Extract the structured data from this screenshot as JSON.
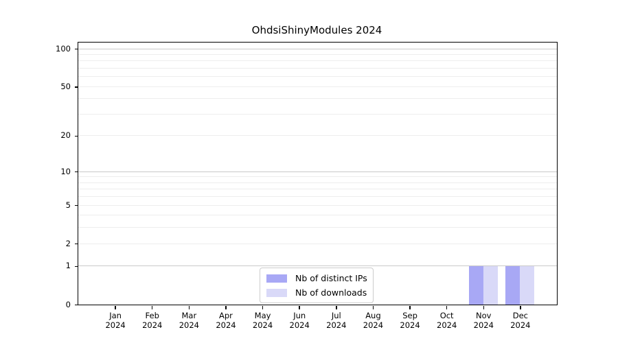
{
  "colors": {
    "background": "#ffffff",
    "axis": "#000000",
    "grid_decade": "#c9c9c9",
    "grid_minor": "#ededed",
    "legend_border": "#cccccc",
    "bar_ips": "#a8a8f5",
    "bar_downloads": "#d9d9f8"
  },
  "chart_data": {
    "type": "bar",
    "title": "OhdsiShinyModules 2024",
    "categories": [
      "Jan 2024",
      "Feb 2024",
      "Mar 2024",
      "Apr 2024",
      "May 2024",
      "Jun 2024",
      "Jul 2024",
      "Aug 2024",
      "Sep 2024",
      "Oct 2024",
      "Nov 2024",
      "Dec 2024"
    ],
    "series": [
      {
        "name": "Nb of distinct IPs",
        "color": "#a8a8f5",
        "values": [
          0,
          0,
          0,
          0,
          0,
          0,
          0,
          0,
          0,
          0,
          1,
          1
        ]
      },
      {
        "name": "Nb of downloads",
        "color": "#d9d9f8",
        "values": [
          0,
          0,
          0,
          0,
          0,
          0,
          0,
          0,
          0,
          0,
          1,
          1
        ]
      }
    ],
    "xlabel": "",
    "ylabel": "",
    "y_axis": {
      "scale": "log1p",
      "tick_labels": [
        0,
        1,
        2,
        5,
        10,
        20,
        50,
        100
      ],
      "decade_gridlines": [
        1,
        10,
        100
      ],
      "minor_gridlines": [
        2,
        3,
        4,
        5,
        6,
        7,
        8,
        9,
        20,
        30,
        40,
        50,
        60,
        70,
        80,
        90
      ],
      "ylim": [
        0,
        112
      ]
    },
    "grid": "on",
    "legend": {
      "position": "bottom-center",
      "entries": [
        "Nb of distinct IPs",
        "Nb of downloads"
      ]
    }
  }
}
